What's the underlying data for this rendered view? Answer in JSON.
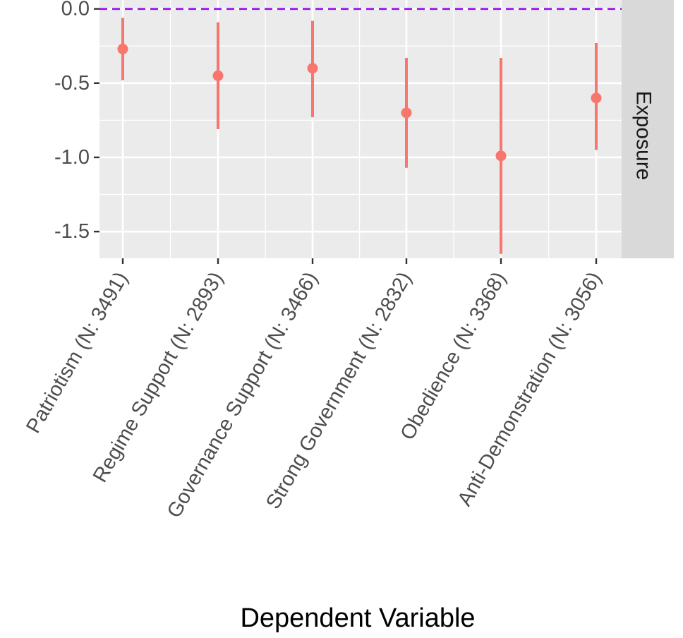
{
  "chart_data": {
    "type": "scatter",
    "subtype": "point-range",
    "title": "",
    "xlabel": "Dependent Variable",
    "ylabel": "",
    "facet_label": "Exposure",
    "categories": [
      "Patriotism (N: 3491)",
      "Regime Support (N: 2893)",
      "Governance Support (N: 3466)",
      "Strong Government (N: 2832)",
      "Obedience (N: 3368)",
      "Anti-Demonstration (N: 3056)"
    ],
    "estimates": [
      -0.27,
      -0.45,
      -0.4,
      -0.7,
      -0.99,
      -0.6
    ],
    "lower": [
      -0.48,
      -0.81,
      -0.73,
      -1.07,
      -1.65,
      -0.95
    ],
    "upper": [
      -0.06,
      -0.09,
      -0.08,
      -0.33,
      -0.33,
      -0.23
    ],
    "ylim": [
      -1.68,
      0.06
    ],
    "yticks": [
      0.0,
      -0.5,
      -1.0,
      -1.5
    ],
    "ytick_labels": [
      "0.0",
      "-0.5",
      "-1.0",
      "-1.5"
    ],
    "reference_line": 0.0,
    "grid": true,
    "colors": {
      "points": "#F8766D",
      "reference_line": "#A020F0",
      "panel_background": "#EBEBEB",
      "strip_background": "#D9D9D9",
      "grid": "#FFFFFF"
    }
  }
}
